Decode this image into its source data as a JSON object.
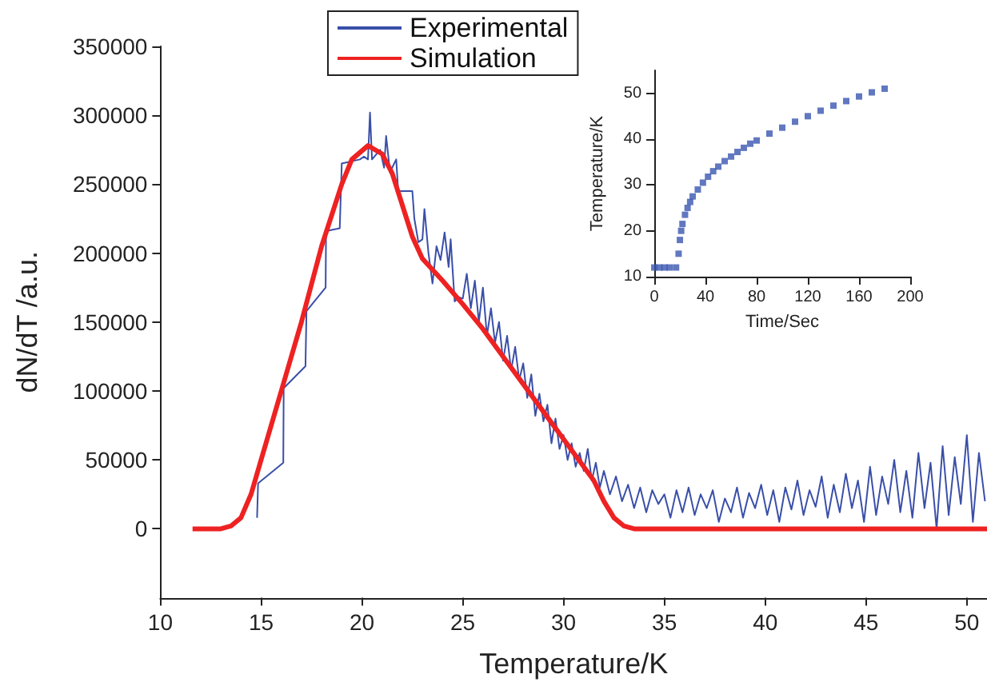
{
  "chart_data": [
    {
      "type": "line",
      "xlabel": "Temperature/K",
      "ylabel": "dN/dT /a.u.",
      "xlim": [
        10,
        51
      ],
      "xticks": [
        10,
        15,
        20,
        25,
        30,
        35,
        40,
        45,
        50
      ],
      "ylim": [
        -50000,
        350000
      ],
      "yticks": [
        0,
        50000,
        100000,
        150000,
        200000,
        250000,
        300000,
        350000
      ],
      "legend": "top",
      "grid": false,
      "marker": "none",
      "series": [
        {
          "name": "Experimental",
          "color": "#3a4fa8",
          "x": [
            14.8,
            14.85,
            16.1,
            16.12,
            17.2,
            17.25,
            18.2,
            18.22,
            18.9,
            19.0,
            19.9,
            20.1,
            20.3,
            20.35,
            20.4,
            20.5,
            20.9,
            21.1,
            21.2,
            21.4,
            21.5,
            21.7,
            21.8,
            22.5,
            22.6,
            22.8,
            23.0,
            23.1,
            23.3,
            23.5,
            23.7,
            23.9,
            24.1,
            24.3,
            24.4,
            24.6,
            24.8,
            25.0,
            25.2,
            25.4,
            25.6,
            25.8,
            26.0,
            26.2,
            26.4,
            26.6,
            26.8,
            27.0,
            27.2,
            27.4,
            27.6,
            27.8,
            28.0,
            28.2,
            28.4,
            28.6,
            28.8,
            29.0,
            29.2,
            29.4,
            29.6,
            29.8,
            30.0,
            30.2,
            30.4,
            30.6,
            30.8,
            31.0,
            31.2,
            31.4,
            31.6,
            31.8,
            32.0,
            32.3,
            32.6,
            32.9,
            33.2,
            33.5,
            33.8,
            34.1,
            34.4,
            34.7,
            35.0,
            35.3,
            35.6,
            35.9,
            36.2,
            36.5,
            36.8,
            37.1,
            37.4,
            37.7,
            38.0,
            38.3,
            38.6,
            38.9,
            39.2,
            39.5,
            39.8,
            40.1,
            40.4,
            40.7,
            41.0,
            41.3,
            41.6,
            41.9,
            42.2,
            42.5,
            42.8,
            43.1,
            43.4,
            43.7,
            44.0,
            44.3,
            44.6,
            44.9,
            45.2,
            45.5,
            45.8,
            46.1,
            46.4,
            46.7,
            47.0,
            47.3,
            47.6,
            47.9,
            48.2,
            48.5,
            48.8,
            49.1,
            49.4,
            49.7,
            50.0,
            50.3,
            50.6,
            50.9
          ],
          "values": [
            8000,
            33000,
            48000,
            102000,
            118000,
            158000,
            175000,
            216000,
            218000,
            265000,
            268000,
            270000,
            268000,
            285000,
            302000,
            268000,
            275000,
            262000,
            285000,
            258000,
            262000,
            268000,
            245000,
            245000,
            225000,
            208000,
            210000,
            232000,
            200000,
            178000,
            205000,
            195000,
            215000,
            190000,
            210000,
            165000,
            168000,
            167000,
            185000,
            160000,
            180000,
            150000,
            175000,
            140000,
            160000,
            135000,
            150000,
            122000,
            140000,
            115000,
            132000,
            108000,
            120000,
            95000,
            112000,
            82000,
            98000,
            78000,
            90000,
            62000,
            80000,
            58000,
            68000,
            50000,
            62000,
            45000,
            55000,
            42000,
            58000,
            35000,
            48000,
            30000,
            42000,
            25000,
            38000,
            20000,
            32000,
            15000,
            30000,
            12000,
            28000,
            18000,
            25000,
            8000,
            28000,
            12000,
            30000,
            10000,
            25000,
            15000,
            28000,
            5000,
            22000,
            12000,
            30000,
            8000,
            26000,
            15000,
            32000,
            10000,
            28000,
            5000,
            30000,
            14000,
            35000,
            10000,
            28000,
            16000,
            38000,
            8000,
            32000,
            12000,
            40000,
            15000,
            35000,
            5000,
            45000,
            10000,
            38000,
            18000,
            50000,
            12000,
            42000,
            8000,
            55000,
            15000,
            48000,
            0,
            60000,
            10000,
            52000,
            18000,
            68000,
            5000,
            55000,
            20000
          ]
        },
        {
          "name": "Simulation",
          "color": "#ee2222",
          "x": [
            11.6,
            13,
            13.5,
            14,
            14.5,
            15,
            16,
            17,
            18,
            19,
            19.5,
            20.3,
            21,
            21.5,
            22,
            22.5,
            23,
            24,
            25,
            26,
            27,
            28,
            29,
            30,
            31,
            31.5,
            32,
            32.5,
            33,
            33.5,
            51
          ],
          "values": [
            0,
            0,
            2000,
            8000,
            25000,
            50000,
            100000,
            150000,
            205000,
            250000,
            268000,
            278000,
            272000,
            258000,
            235000,
            212000,
            196000,
            180000,
            163000,
            145000,
            125000,
            105000,
            85000,
            65000,
            45000,
            35000,
            20000,
            8000,
            2000,
            0,
            0
          ]
        }
      ]
    },
    {
      "type": "scatter",
      "xlabel": "Time/Sec",
      "ylabel": "Temperature/K",
      "xlim": [
        0,
        200
      ],
      "xticks": [
        0,
        40,
        80,
        120,
        160,
        200
      ],
      "ylim": [
        10,
        55
      ],
      "yticks": [
        10,
        20,
        30,
        40,
        50
      ],
      "marker": "square",
      "grid": false,
      "series": [
        {
          "color": "#3a56b0",
          "x": [
            0,
            4,
            8,
            12,
            17,
            19,
            20,
            21,
            22,
            24,
            26,
            28,
            30,
            34,
            38,
            42,
            46,
            50,
            55,
            60,
            65,
            70,
            75,
            80,
            90,
            100,
            110,
            120,
            130,
            140,
            150,
            160,
            170,
            180
          ],
          "values": [
            12,
            12,
            12,
            12,
            12,
            15,
            18,
            20,
            21.5,
            23.5,
            25,
            26.3,
            27.5,
            29,
            30.5,
            31.8,
            33,
            34,
            35.2,
            36.2,
            37.2,
            38.1,
            39,
            39.7,
            41.2,
            42.5,
            43.8,
            45,
            46.2,
            47.3,
            48.3,
            49.3,
            50.2,
            51
          ]
        }
      ]
    }
  ]
}
